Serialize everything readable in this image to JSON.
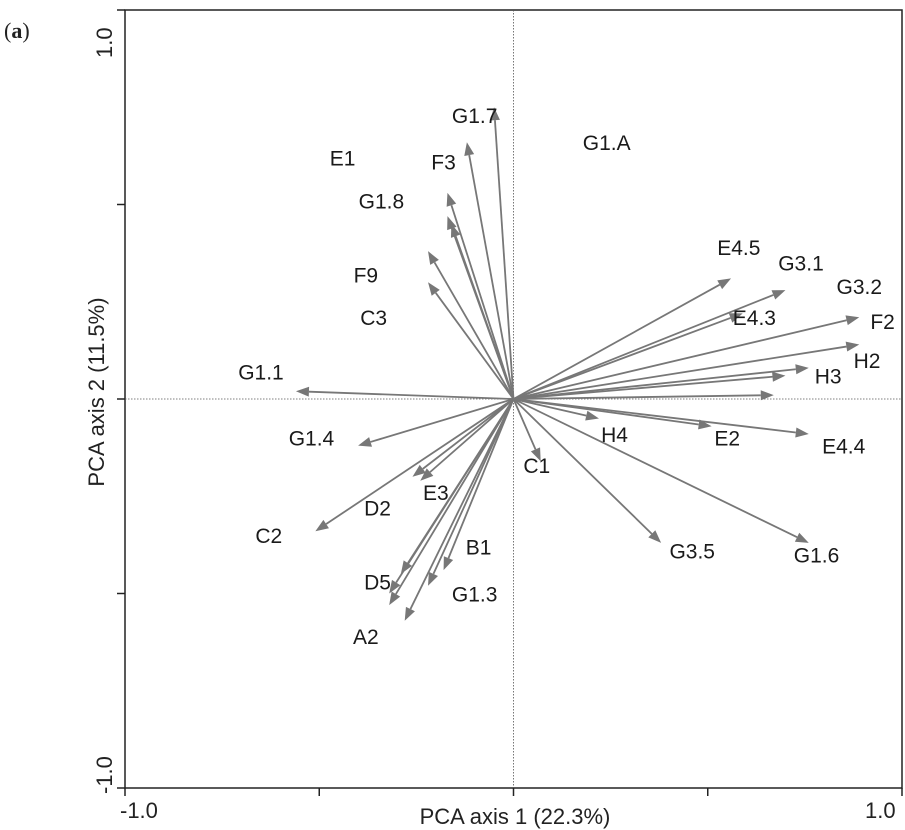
{
  "panel_label": {
    "open": "(",
    "letter": "a",
    "close": ")"
  },
  "chart_data": {
    "type": "scatter",
    "subtype": "pca-biplot-vectors",
    "title": "",
    "xlabel": "PCA axis 1 (22.3%)",
    "ylabel": "PCA axis 2 (11.5%)",
    "xlim": [
      -1.0,
      1.0
    ],
    "ylim": [
      -1.0,
      1.0
    ],
    "x_tick_labels": [
      "-1.0",
      "1.0"
    ],
    "y_tick_labels": [
      "-1.0",
      "1.0"
    ],
    "grid": false,
    "origin_lines": true,
    "arrow_color": "#777777",
    "vectors": [
      {
        "x": -0.12,
        "y": 0.66
      },
      {
        "x": -0.17,
        "y": 0.47
      },
      {
        "x": -0.16,
        "y": 0.45
      },
      {
        "x": -0.17,
        "y": 0.53
      },
      {
        "x": -0.05,
        "y": 0.75
      },
      {
        "x": -0.22,
        "y": 0.38
      },
      {
        "x": -0.22,
        "y": 0.3
      },
      {
        "x": -0.56,
        "y": 0.02
      },
      {
        "x": -0.4,
        "y": -0.12
      },
      {
        "x": -0.51,
        "y": -0.34
      },
      {
        "x": -0.24,
        "y": -0.21
      },
      {
        "x": -0.26,
        "y": -0.2
      },
      {
        "x": -0.32,
        "y": -0.5
      },
      {
        "x": -0.29,
        "y": -0.45
      },
      {
        "x": -0.32,
        "y": -0.53
      },
      {
        "x": -0.28,
        "y": -0.57
      },
      {
        "x": -0.18,
        "y": -0.44
      },
      {
        "x": -0.22,
        "y": -0.48
      },
      {
        "x": 0.07,
        "y": -0.16
      },
      {
        "x": 0.22,
        "y": -0.05
      },
      {
        "x": 0.51,
        "y": -0.07
      },
      {
        "x": 0.76,
        "y": -0.09
      },
      {
        "x": 0.76,
        "y": -0.37
      },
      {
        "x": 0.38,
        "y": -0.37
      },
      {
        "x": 0.59,
        "y": 0.22
      },
      {
        "x": 0.56,
        "y": 0.31
      },
      {
        "x": 0.7,
        "y": 0.28
      },
      {
        "x": 0.89,
        "y": 0.21
      },
      {
        "x": 0.89,
        "y": 0.14
      },
      {
        "x": 0.76,
        "y": 0.08
      },
      {
        "x": 0.7,
        "y": 0.06
      },
      {
        "x": 0.67,
        "y": 0.01
      }
    ],
    "labels": [
      {
        "text": "G1.7",
        "x": -0.1,
        "y": 0.71
      },
      {
        "text": "G1.A",
        "x": 0.24,
        "y": 0.64
      },
      {
        "text": "E1",
        "x": -0.44,
        "y": 0.6
      },
      {
        "text": "F3",
        "x": -0.18,
        "y": 0.59
      },
      {
        "text": "G1.8",
        "x": -0.34,
        "y": 0.49
      },
      {
        "text": "F9",
        "x": -0.38,
        "y": 0.3
      },
      {
        "text": "C3",
        "x": -0.36,
        "y": 0.19
      },
      {
        "text": "G1.1",
        "x": -0.65,
        "y": 0.05
      },
      {
        "text": "G1.4",
        "x": -0.52,
        "y": -0.12
      },
      {
        "text": "C2",
        "x": -0.63,
        "y": -0.37
      },
      {
        "text": "D2",
        "x": -0.35,
        "y": -0.3
      },
      {
        "text": "E3",
        "x": -0.2,
        "y": -0.26
      },
      {
        "text": "B1",
        "x": -0.09,
        "y": -0.4
      },
      {
        "text": "D5",
        "x": -0.35,
        "y": -0.49
      },
      {
        "text": "G1.3",
        "x": -0.1,
        "y": -0.52
      },
      {
        "text": "A2",
        "x": -0.38,
        "y": -0.63
      },
      {
        "text": "C1",
        "x": 0.06,
        "y": -0.19
      },
      {
        "text": "H4",
        "x": 0.26,
        "y": -0.11
      },
      {
        "text": "E2",
        "x": 0.55,
        "y": -0.12
      },
      {
        "text": "E4.4",
        "x": 0.85,
        "y": -0.14
      },
      {
        "text": "G3.5",
        "x": 0.46,
        "y": -0.41
      },
      {
        "text": "G1.6",
        "x": 0.78,
        "y": -0.42
      },
      {
        "text": "E4.5",
        "x": 0.58,
        "y": 0.37
      },
      {
        "text": "G3.1",
        "x": 0.74,
        "y": 0.33
      },
      {
        "text": "G3.2",
        "x": 0.89,
        "y": 0.27
      },
      {
        "text": "E4.3",
        "x": 0.62,
        "y": 0.19
      },
      {
        "text": "F2",
        "x": 0.95,
        "y": 0.18
      },
      {
        "text": "H2",
        "x": 0.91,
        "y": 0.08
      },
      {
        "text": "H3",
        "x": 0.81,
        "y": 0.04
      }
    ]
  }
}
